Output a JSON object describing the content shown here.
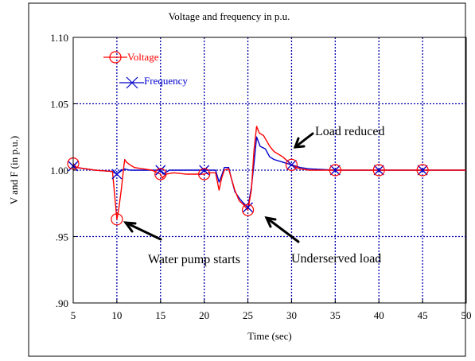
{
  "chart_data": {
    "type": "line",
    "title": "Voltage and frequency in p.u.",
    "xlabel": "Time (sec)",
    "ylabel": "V and F (in p.u.)",
    "xlim": [
      5,
      50
    ],
    "ylim": [
      0.9,
      1.1
    ],
    "x_ticks": [
      "5",
      "10",
      "15",
      "20",
      "25",
      "30",
      "35",
      "40",
      "45",
      "50"
    ],
    "y_ticks": [
      ".90",
      ".95",
      "1.00",
      "1.05",
      "1.10"
    ],
    "grid": true,
    "legend_position": "top-left",
    "series": [
      {
        "name": "Voltage",
        "color": "#ff0000",
        "marker": "circle",
        "x": [
          5.0,
          5.4,
          7.5,
          9.5,
          10.0,
          10.2,
          10.5,
          10.8,
          10.9,
          11.1,
          11.5,
          12,
          13,
          14,
          15.0,
          15.2,
          15.6,
          16.5,
          18,
          19.5,
          20.0,
          20.5,
          21.3,
          21.7,
          22.0,
          22.3,
          22.8,
          23.1,
          23.5,
          24.0,
          24.5,
          25.0,
          25.4,
          25.7,
          26.0,
          26.3,
          26.8,
          27.5,
          28,
          29,
          30.0,
          30.5,
          31,
          32,
          35,
          40,
          45,
          50
        ],
        "y": [
          1.005,
          1.002,
          1.0,
          0.999,
          0.963,
          0.97,
          0.985,
          1.003,
          1.008,
          1.006,
          1.004,
          1.002,
          1.001,
          1.0,
          0.997,
          0.994,
          0.997,
          0.998,
          0.997,
          0.997,
          0.997,
          0.998,
          0.998,
          0.985,
          0.994,
          1.0,
          1.001,
          0.994,
          0.985,
          0.977,
          0.974,
          0.97,
          0.985,
          1.015,
          1.033,
          1.028,
          1.026,
          1.018,
          1.014,
          1.01,
          1.004,
          1.002,
          1.001,
          1.0,
          1.0,
          1.0,
          1.0,
          1.0
        ],
        "marker_x": [
          5.0,
          10.0,
          15.0,
          20.0,
          25.0,
          30.0,
          35.0,
          40.0,
          45.0
        ]
      },
      {
        "name": "Frequency",
        "color": "#0000cc",
        "marker": "x",
        "x": [
          5.0,
          5.4,
          7.5,
          9.5,
          10.0,
          10.4,
          10.8,
          11.5,
          13,
          15.0,
          15.3,
          16,
          17,
          19,
          20.0,
          20.6,
          21.3,
          21.7,
          22.0,
          22.3,
          22.8,
          23.1,
          23.5,
          24.0,
          24.5,
          25.0,
          25.4,
          25.7,
          26.0,
          26.4,
          27,
          27.5,
          28,
          29,
          30.0,
          31,
          32,
          35,
          40,
          45,
          50
        ],
        "y": [
          1.003,
          1.002,
          1.0,
          0.999,
          0.997,
          0.999,
          1.001,
          1.0,
          1.0,
          1.0,
          0.997,
          1.0,
          1.0,
          1.0,
          1.0,
          1.0,
          1.0,
          0.991,
          0.996,
          1.002,
          1.002,
          0.994,
          0.984,
          0.979,
          0.975,
          0.972,
          0.987,
          1.005,
          1.025,
          1.018,
          1.016,
          1.01,
          1.008,
          1.006,
          1.004,
          1.002,
          1.001,
          1.0,
          1.0,
          1.0,
          1.0
        ],
        "marker_x": [
          5.0,
          10.0,
          15.0,
          20.0,
          25.0,
          30.0,
          35.0,
          40.0,
          45.0
        ]
      }
    ],
    "annotations": [
      {
        "text": "Water pump starts",
        "target": [
          10.9,
          0.959
        ]
      },
      {
        "text": "Underserved load",
        "target": [
          27.0,
          0.96
        ]
      },
      {
        "text": "Load reduced",
        "target": [
          31.3,
          1.007
        ]
      }
    ]
  }
}
